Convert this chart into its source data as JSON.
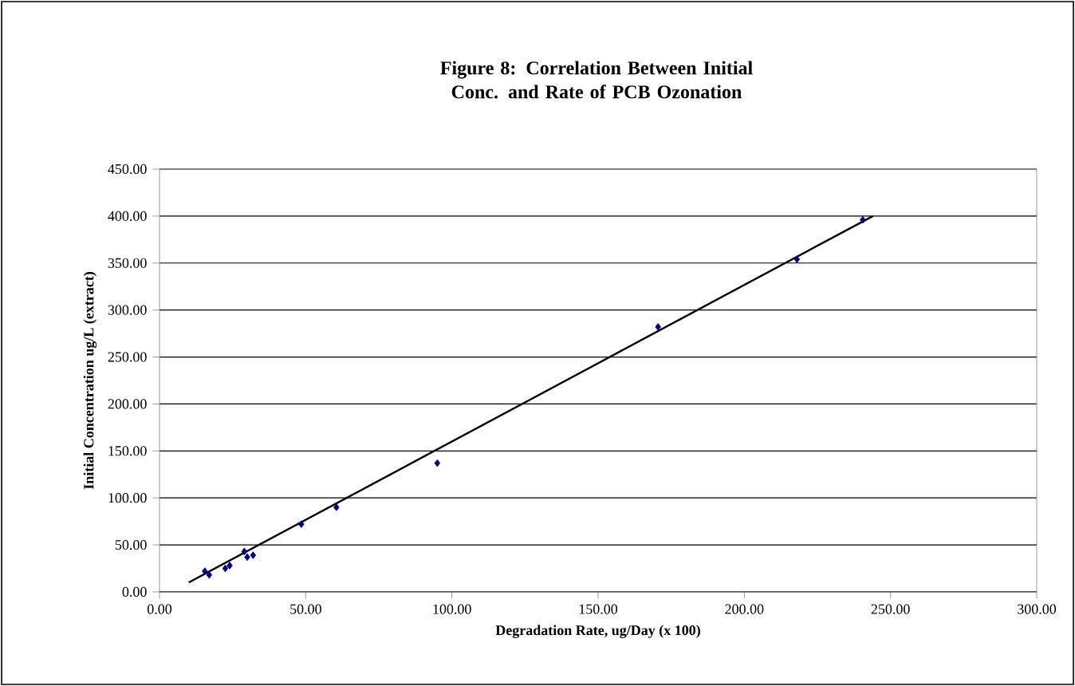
{
  "chart_data": {
    "type": "scatter",
    "title": "Figure 8: Correlation Between Initial Conc. and Rate of PCB Ozonation",
    "xlabel": "Degradation Rate, ug/Day (x 100)",
    "ylabel": "Initial Concentration ug/L (extract)",
    "xlim": [
      0,
      300
    ],
    "ylim": [
      0,
      450
    ],
    "xticks": [
      {
        "value": 0,
        "label": "0.00"
      },
      {
        "value": 50,
        "label": "50.00"
      },
      {
        "value": 100,
        "label": "100.00"
      },
      {
        "value": 150,
        "label": "150.00"
      },
      {
        "value": 200,
        "label": "200.00"
      },
      {
        "value": 250,
        "label": "250.00"
      },
      {
        "value": 300,
        "label": "300.00"
      }
    ],
    "yticks": [
      {
        "value": 0,
        "label": "0.00"
      },
      {
        "value": 50,
        "label": "50.00"
      },
      {
        "value": 100,
        "label": "100.00"
      },
      {
        "value": 150,
        "label": "150.00"
      },
      {
        "value": 200,
        "label": "200.00"
      },
      {
        "value": 250,
        "label": "250.00"
      },
      {
        "value": 300,
        "label": "300.00"
      },
      {
        "value": 350,
        "label": "350.00"
      },
      {
        "value": 400,
        "label": "400.00"
      },
      {
        "value": 450,
        "label": "450.00"
      }
    ],
    "grid": "y",
    "marker": "diamond",
    "series": [
      {
        "color": "#000080",
        "x": [
          15.5,
          17,
          22.5,
          24,
          29,
          30,
          32,
          48.5,
          60.5,
          95,
          170.5,
          218,
          240.5
        ],
        "values": [
          22,
          18,
          25,
          28,
          43,
          37,
          39,
          72,
          90,
          137,
          282,
          354,
          396
        ]
      },
      {
        "type": "line",
        "color": "#000000",
        "marker": "none",
        "x": [
          10,
          244
        ],
        "values": [
          10,
          400
        ]
      }
    ]
  }
}
